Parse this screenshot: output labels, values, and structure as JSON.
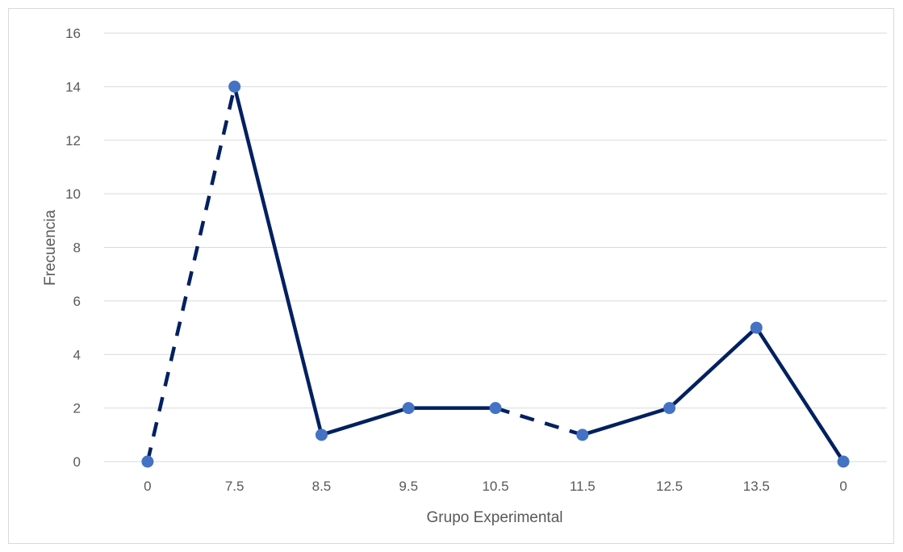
{
  "chart_data": {
    "type": "line",
    "title": "",
    "xlabel": "Grupo Experimental",
    "ylabel": "Frecuencia",
    "categories": [
      "0",
      "7.5",
      "8.5",
      "9.5",
      "10.5",
      "11.5",
      "12.5",
      "13.5",
      "0"
    ],
    "series": [
      {
        "values": [
          0,
          14,
          1,
          2,
          2,
          1,
          2,
          5,
          0
        ],
        "line_color": "#002060",
        "marker_color": "#4472C4",
        "dashed_segments": [
          [
            0,
            1
          ],
          [
            4,
            5
          ]
        ]
      }
    ],
    "ylim": [
      0,
      16
    ],
    "yticks": [
      0,
      2,
      4,
      6,
      8,
      10,
      12,
      14,
      16
    ],
    "grid": true,
    "legend": "none",
    "gridline_color": "#d9d9d9"
  }
}
